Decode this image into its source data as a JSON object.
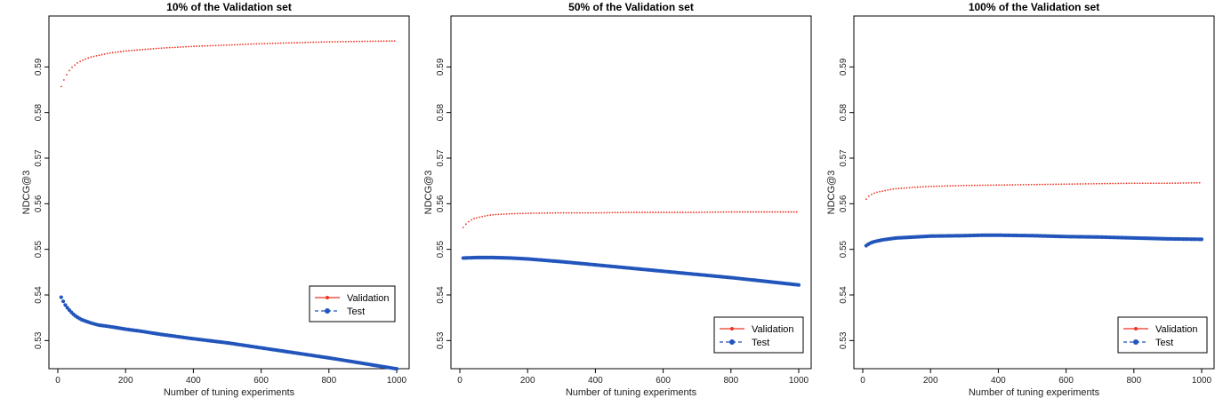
{
  "chart_data": [
    {
      "type": "scatter",
      "title": "10% of the Validation set",
      "xlabel": "Number of tuning experiments",
      "ylabel": "NDCG@3",
      "xlim": [
        0,
        1000
      ],
      "ylim": [
        0.525,
        0.6
      ],
      "xticks": [
        0,
        200,
        400,
        600,
        800,
        1000
      ],
      "yticks": [
        0.53,
        0.54,
        0.55,
        0.56,
        0.57,
        0.58,
        0.59
      ],
      "legend_position": "right, lower-middle",
      "grid": false,
      "series": [
        {
          "name": "Validation",
          "color": "#ee3322",
          "marker": "small-dot",
          "line": "solid",
          "x": [
            10,
            20,
            30,
            40,
            60,
            80,
            100,
            150,
            200,
            300,
            400,
            500,
            600,
            700,
            800,
            900,
            1000
          ],
          "y": [
            0.5857,
            0.5875,
            0.5888,
            0.5898,
            0.591,
            0.5917,
            0.5922,
            0.593,
            0.5935,
            0.5941,
            0.5945,
            0.5948,
            0.5951,
            0.5953,
            0.5955,
            0.5956,
            0.5957
          ]
        },
        {
          "name": "Test",
          "color": "#2255bb",
          "marker": "large-dot",
          "line": "dashed",
          "x": [
            10,
            20,
            30,
            40,
            50,
            60,
            70,
            80,
            100,
            120,
            150,
            200,
            250,
            300,
            400,
            500,
            600,
            700,
            800,
            900,
            1000
          ],
          "y": [
            0.5395,
            0.538,
            0.537,
            0.5362,
            0.5355,
            0.535,
            0.5346,
            0.5343,
            0.5338,
            0.5334,
            0.5331,
            0.5325,
            0.532,
            0.5314,
            0.5304,
            0.5295,
            0.5284,
            0.5273,
            0.5262,
            0.525,
            0.5238
          ]
        }
      ]
    },
    {
      "type": "scatter",
      "title": "50% of the Validation set",
      "xlabel": "Number of tuning experiments",
      "ylabel": "NDCG@3",
      "xlim": [
        0,
        1000
      ],
      "ylim": [
        0.525,
        0.6
      ],
      "xticks": [
        0,
        200,
        400,
        600,
        800,
        1000
      ],
      "yticks": [
        0.53,
        0.54,
        0.55,
        0.56,
        0.57,
        0.58,
        0.59
      ],
      "legend_position": "bottom-right",
      "grid": false,
      "series": [
        {
          "name": "Validation",
          "color": "#ee3322",
          "marker": "small-dot",
          "line": "solid",
          "x": [
            10,
            20,
            30,
            40,
            60,
            80,
            100,
            150,
            200,
            300,
            400,
            500,
            600,
            700,
            800,
            900,
            1000
          ],
          "y": [
            0.5548,
            0.5557,
            0.5563,
            0.5567,
            0.5571,
            0.5574,
            0.5576,
            0.5578,
            0.5579,
            0.558,
            0.558,
            0.5581,
            0.5581,
            0.5581,
            0.5582,
            0.5582,
            0.5582
          ]
        },
        {
          "name": "Test",
          "color": "#2255bb",
          "marker": "large-dot",
          "line": "dashed",
          "x": [
            10,
            50,
            100,
            150,
            200,
            300,
            400,
            500,
            600,
            700,
            800,
            900,
            1000
          ],
          "y": [
            0.5481,
            0.5482,
            0.5482,
            0.5481,
            0.5479,
            0.5473,
            0.5466,
            0.5459,
            0.5452,
            0.5445,
            0.5438,
            0.543,
            0.5422
          ]
        }
      ]
    },
    {
      "type": "scatter",
      "title": "100% of the Validation set",
      "xlabel": "Number of tuning experiments",
      "ylabel": "NDCG@3",
      "xlim": [
        0,
        1000
      ],
      "ylim": [
        0.525,
        0.6
      ],
      "xticks": [
        0,
        200,
        400,
        600,
        800,
        1000
      ],
      "yticks": [
        0.53,
        0.54,
        0.55,
        0.56,
        0.57,
        0.58,
        0.59
      ],
      "legend_position": "bottom-right",
      "grid": false,
      "series": [
        {
          "name": "Validation",
          "color": "#ee3322",
          "marker": "small-dot",
          "line": "solid",
          "x": [
            10,
            20,
            30,
            40,
            60,
            80,
            100,
            150,
            200,
            300,
            400,
            500,
            600,
            700,
            800,
            900,
            1000
          ],
          "y": [
            0.561,
            0.5618,
            0.5622,
            0.5625,
            0.5628,
            0.5631,
            0.5633,
            0.5636,
            0.5638,
            0.564,
            0.5641,
            0.5642,
            0.5643,
            0.5644,
            0.5645,
            0.5645,
            0.5646
          ]
        },
        {
          "name": "Test",
          "color": "#2255bb",
          "marker": "large-dot",
          "line": "dashed",
          "x": [
            10,
            20,
            30,
            40,
            60,
            80,
            100,
            150,
            200,
            300,
            350,
            400,
            500,
            600,
            700,
            800,
            900,
            1000
          ],
          "y": [
            0.5508,
            0.5513,
            0.5516,
            0.5518,
            0.5521,
            0.5523,
            0.5525,
            0.5527,
            0.5529,
            0.553,
            0.5531,
            0.5531,
            0.553,
            0.5528,
            0.5527,
            0.5525,
            0.5523,
            0.5522
          ]
        }
      ]
    }
  ]
}
